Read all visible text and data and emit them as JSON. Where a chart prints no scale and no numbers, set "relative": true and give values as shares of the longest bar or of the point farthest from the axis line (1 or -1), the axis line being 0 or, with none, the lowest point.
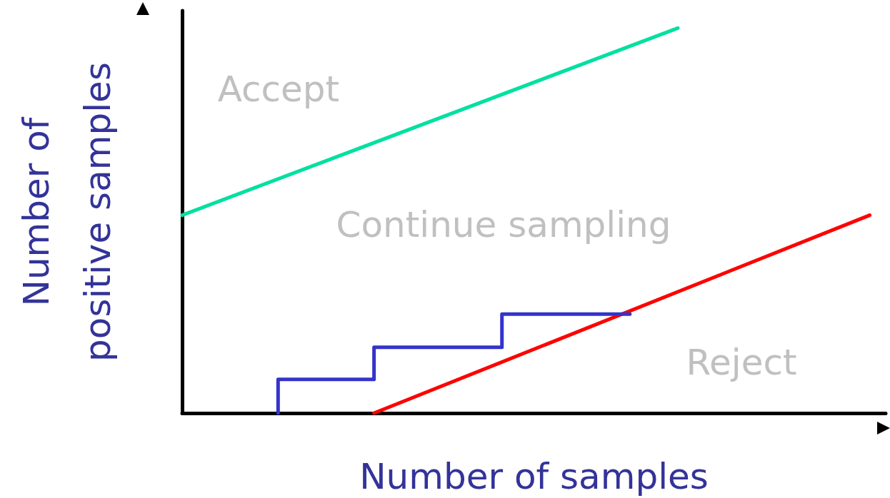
{
  "chart_data": {
    "type": "line",
    "relative": true,
    "xlabel": "Number of samples",
    "ylabel": "Number of positive samples",
    "grid": false,
    "marker": "none",
    "line_style": "solid",
    "categories": [
      null,
      null,
      null,
      null,
      null,
      null,
      null,
      null,
      null,
      null,
      null,
      null,
      null,
      null,
      null,
      null,
      null,
      null,
      null,
      null,
      null,
      null,
      null,
      null,
      null,
      null,
      null,
      null,
      null,
      null,
      null,
      null,
      null,
      null,
      null,
      null,
      null,
      null,
      null,
      null,
      null,
      null,
      null,
      null,
      null
    ],
    "series": [
      {
        "color": "#00e0a0",
        "values": [
          0.514,
          null,
          null,
          null,
          null,
          null,
          null,
          null,
          null,
          null,
          null,
          null,
          null,
          null,
          null,
          null,
          null,
          null,
          null,
          null,
          null,
          null,
          null,
          null,
          null,
          null,
          null,
          null,
          null,
          null,
          null,
          1,
          null,
          null,
          null,
          null,
          null,
          null,
          null,
          null,
          null,
          null,
          null,
          null,
          null
        ]
      },
      {
        "color": "#ff0000",
        "values": [
          null,
          null,
          null,
          null,
          null,
          null,
          null,
          null,
          null,
          null,
          null,
          null,
          0,
          null,
          null,
          null,
          null,
          null,
          null,
          null,
          null,
          null,
          null,
          null,
          null,
          null,
          null,
          null,
          null,
          null,
          null,
          null,
          null,
          null,
          null,
          null,
          null,
          null,
          null,
          null,
          null,
          null,
          null,
          0.514,
          null
        ]
      },
      {
        "type": "step",
        "color": "#3333cc",
        "values": [
          null,
          null,
          null,
          null,
          null,
          null,
          0,
          null,
          null,
          null,
          null,
          null,
          0.0875,
          null,
          null,
          null,
          null,
          null,
          null,
          null,
          0.171,
          null,
          null,
          null,
          null,
          null,
          null,
          null,
          0.257,
          null,
          null,
          null,
          null,
          null,
          null,
          null,
          null,
          null,
          null,
          null,
          null,
          null,
          null,
          null,
          null
        ]
      }
    ],
    "annotations": [
      "Accept",
      "Continue sampling",
      "Reject"
    ]
  }
}
